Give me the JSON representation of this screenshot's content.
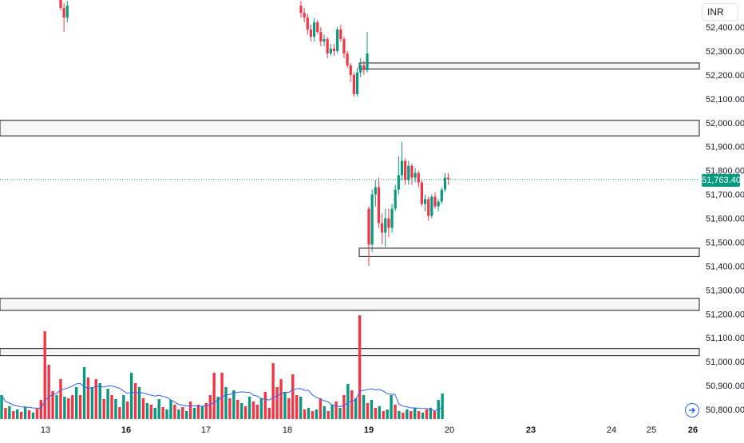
{
  "chart_data": {
    "type": "candlestick",
    "currency": "INR",
    "last_price": "51,763.40",
    "colors": {
      "up": "#089981",
      "down": "#f23645",
      "ma": "#2962ff",
      "last": "#089981",
      "zone": "#131722"
    },
    "y_axis": {
      "range": [
        50760,
        52460
      ],
      "ticks": [
        "52,400.00",
        "52,300.00",
        "52,200.00",
        "52,100.00",
        "52,000.00",
        "51,900.00",
        "51,800.00",
        "51,700.00",
        "51,600.00",
        "51,500.00",
        "51,400.00",
        "51,300.00",
        "51,200.00",
        "51,100.00",
        "51,000.00",
        "50,900.00",
        "50,800.00"
      ],
      "tick_values": [
        52400,
        52300,
        52200,
        52100,
        52000,
        51900,
        51800,
        51700,
        51600,
        51500,
        51400,
        51300,
        51200,
        51100,
        51000,
        50900,
        50800
      ]
    },
    "x_axis": {
      "labels": [
        "13",
        "16",
        "17",
        "18",
        "19",
        "20",
        "23",
        "24",
        "25",
        "26"
      ],
      "bold": [
        "16",
        "19",
        "23",
        "26"
      ]
    },
    "zones": [
      {
        "from": 52225,
        "to": 52250,
        "start_day": 19
      },
      {
        "from": 51945,
        "to": 52010
      },
      {
        "from": 51440,
        "to": 51475,
        "start_day": 19
      },
      {
        "from": 51215,
        "to": 51265
      },
      {
        "from": 51025,
        "to": 51055
      }
    ],
    "candle_groups": [
      {
        "day": 13,
        "candles": [
          {
            "o": 52530,
            "h": 52560,
            "l": 52470,
            "c": 52480
          },
          {
            "o": 52480,
            "h": 52500,
            "l": 52380,
            "c": 52440
          },
          {
            "o": 52440,
            "h": 52510,
            "l": 52420,
            "c": 52490
          }
        ]
      },
      {
        "day": 18,
        "candles": [
          {
            "o": 52490,
            "h": 52510,
            "l": 52440,
            "c": 52460
          },
          {
            "o": 52460,
            "h": 52480,
            "l": 52420,
            "c": 52440
          },
          {
            "o": 52440,
            "h": 52455,
            "l": 52370,
            "c": 52390
          },
          {
            "o": 52390,
            "h": 52410,
            "l": 52340,
            "c": 52360
          },
          {
            "o": 52360,
            "h": 52440,
            "l": 52340,
            "c": 52420
          },
          {
            "o": 52420,
            "h": 52430,
            "l": 52370,
            "c": 52380
          },
          {
            "o": 52380,
            "h": 52400,
            "l": 52320,
            "c": 52340
          },
          {
            "o": 52340,
            "h": 52370,
            "l": 52320,
            "c": 52350
          },
          {
            "o": 52350,
            "h": 52360,
            "l": 52270,
            "c": 52290
          },
          {
            "o": 52290,
            "h": 52330,
            "l": 52280,
            "c": 52310
          },
          {
            "o": 52310,
            "h": 52330,
            "l": 52280,
            "c": 52300
          },
          {
            "o": 52300,
            "h": 52400,
            "l": 52290,
            "c": 52390
          },
          {
            "o": 52390,
            "h": 52410,
            "l": 52340,
            "c": 52350
          },
          {
            "o": 52350,
            "h": 52360,
            "l": 52270,
            "c": 52290
          },
          {
            "o": 52290,
            "h": 52300,
            "l": 52230,
            "c": 52240
          },
          {
            "o": 52240,
            "h": 52250,
            "l": 52170,
            "c": 52200
          },
          {
            "o": 52200,
            "h": 52210,
            "l": 52110,
            "c": 52120
          },
          {
            "o": 52120,
            "h": 52230,
            "l": 52110,
            "c": 52210
          },
          {
            "o": 52210,
            "h": 52270,
            "l": 52190,
            "c": 52240
          },
          {
            "o": 52240,
            "h": 52260,
            "l": 52200,
            "c": 52220
          },
          {
            "o": 52220,
            "h": 52380,
            "l": 52210,
            "c": 52290
          }
        ]
      },
      {
        "day": 19,
        "candles": [
          {
            "o": 51640,
            "h": 51650,
            "l": 51400,
            "c": 51490
          },
          {
            "o": 51490,
            "h": 51720,
            "l": 51460,
            "c": 51700
          },
          {
            "o": 51700,
            "h": 51760,
            "l": 51650,
            "c": 51730
          },
          {
            "o": 51730,
            "h": 51770,
            "l": 51560,
            "c": 51580
          },
          {
            "o": 51580,
            "h": 51620,
            "l": 51490,
            "c": 51540
          },
          {
            "o": 51540,
            "h": 51640,
            "l": 51480,
            "c": 51600
          },
          {
            "o": 51600,
            "h": 51640,
            "l": 51520,
            "c": 51560
          },
          {
            "o": 51560,
            "h": 51660,
            "l": 51540,
            "c": 51640
          },
          {
            "o": 51640,
            "h": 51740,
            "l": 51630,
            "c": 51720
          },
          {
            "o": 51720,
            "h": 51860,
            "l": 51700,
            "c": 51780
          },
          {
            "o": 51780,
            "h": 51920,
            "l": 51760,
            "c": 51840
          },
          {
            "o": 51840,
            "h": 51850,
            "l": 51740,
            "c": 51760
          },
          {
            "o": 51760,
            "h": 51840,
            "l": 51740,
            "c": 51820
          },
          {
            "o": 51820,
            "h": 51830,
            "l": 51740,
            "c": 51770
          },
          {
            "o": 51770,
            "h": 51810,
            "l": 51750,
            "c": 51790
          },
          {
            "o": 51790,
            "h": 51800,
            "l": 51730,
            "c": 51750
          },
          {
            "o": 51750,
            "h": 51760,
            "l": 51650,
            "c": 51660
          },
          {
            "o": 51660,
            "h": 51700,
            "l": 51630,
            "c": 51680
          },
          {
            "o": 51680,
            "h": 51690,
            "l": 51590,
            "c": 51610
          },
          {
            "o": 51610,
            "h": 51700,
            "l": 51600,
            "c": 51690
          },
          {
            "o": 51690,
            "h": 51710,
            "l": 51640,
            "c": 51650
          },
          {
            "o": 51650,
            "h": 51680,
            "l": 51630,
            "c": 51670
          },
          {
            "o": 51670,
            "h": 51730,
            "l": 51660,
            "c": 51720
          },
          {
            "o": 51720,
            "h": 51790,
            "l": 51710,
            "c": 51770
          },
          {
            "o": 51770,
            "h": 51790,
            "l": 51740,
            "c": 51763.4
          }
        ]
      }
    ],
    "volume_bars": [
      {
        "v": 30,
        "up": true
      },
      {
        "v": 14,
        "up": false
      },
      {
        "v": 16,
        "up": true
      },
      {
        "v": 10,
        "up": false
      },
      {
        "v": 12,
        "up": true
      },
      {
        "v": 9,
        "up": false
      },
      {
        "v": 15,
        "up": true
      },
      {
        "v": 11,
        "up": false
      },
      {
        "v": 8,
        "up": true
      },
      {
        "v": 13,
        "up": false
      },
      {
        "v": 24,
        "up": false
      },
      {
        "v": 110,
        "up": false
      },
      {
        "v": 68,
        "up": false
      },
      {
        "v": 35,
        "up": false
      },
      {
        "v": 30,
        "up": true
      },
      {
        "v": 50,
        "up": false
      },
      {
        "v": 28,
        "up": true
      },
      {
        "v": 26,
        "up": false
      },
      {
        "v": 30,
        "up": false
      },
      {
        "v": 40,
        "up": true
      },
      {
        "v": 30,
        "up": false
      },
      {
        "v": 65,
        "up": true
      },
      {
        "v": 52,
        "up": false
      },
      {
        "v": 40,
        "up": true
      },
      {
        "v": 50,
        "up": false
      },
      {
        "v": 45,
        "up": true
      },
      {
        "v": 25,
        "up": false
      },
      {
        "v": 38,
        "up": true
      },
      {
        "v": 30,
        "up": false
      },
      {
        "v": 25,
        "up": true
      },
      {
        "v": 15,
        "up": false
      },
      {
        "v": 30,
        "up": true
      },
      {
        "v": 22,
        "up": false
      },
      {
        "v": 58,
        "up": true
      },
      {
        "v": 45,
        "up": false
      },
      {
        "v": 40,
        "up": true
      },
      {
        "v": 26,
        "up": false
      },
      {
        "v": 20,
        "up": true
      },
      {
        "v": 18,
        "up": false
      },
      {
        "v": 14,
        "up": true
      },
      {
        "v": 25,
        "up": true
      },
      {
        "v": 15,
        "up": false
      },
      {
        "v": 12,
        "up": true
      },
      {
        "v": 24,
        "up": true
      },
      {
        "v": 18,
        "up": false
      },
      {
        "v": 12,
        "up": true
      },
      {
        "v": 15,
        "up": false
      },
      {
        "v": 10,
        "up": true
      },
      {
        "v": 22,
        "up": false
      },
      {
        "v": 14,
        "up": true
      },
      {
        "v": 18,
        "up": false
      },
      {
        "v": 16,
        "up": true
      },
      {
        "v": 20,
        "up": false
      },
      {
        "v": 30,
        "up": false
      },
      {
        "v": 58,
        "up": false
      },
      {
        "v": 28,
        "up": true
      },
      {
        "v": 58,
        "up": false
      },
      {
        "v": 40,
        "up": true
      },
      {
        "v": 26,
        "up": false
      },
      {
        "v": 36,
        "up": true
      },
      {
        "v": 24,
        "up": false
      },
      {
        "v": 20,
        "up": true
      },
      {
        "v": 16,
        "up": false
      },
      {
        "v": 28,
        "up": true
      },
      {
        "v": 22,
        "up": false
      },
      {
        "v": 18,
        "up": false
      },
      {
        "v": 26,
        "up": true
      },
      {
        "v": 34,
        "up": false
      },
      {
        "v": 14,
        "up": false
      },
      {
        "v": 70,
        "up": false
      },
      {
        "v": 40,
        "up": false
      },
      {
        "v": 50,
        "up": false
      },
      {
        "v": 34,
        "up": true
      },
      {
        "v": 26,
        "up": false
      },
      {
        "v": 56,
        "up": false
      },
      {
        "v": 30,
        "up": false
      },
      {
        "v": 28,
        "up": true
      },
      {
        "v": 12,
        "up": false
      },
      {
        "v": 14,
        "up": true
      },
      {
        "v": 10,
        "up": false
      },
      {
        "v": 12,
        "up": true
      },
      {
        "v": 26,
        "up": false
      },
      {
        "v": 16,
        "up": true
      },
      {
        "v": 10,
        "up": false
      },
      {
        "v": 18,
        "up": true
      },
      {
        "v": 22,
        "up": false
      },
      {
        "v": 14,
        "up": true
      },
      {
        "v": 30,
        "up": false
      },
      {
        "v": 44,
        "up": true
      },
      {
        "v": 36,
        "up": false
      },
      {
        "v": 26,
        "up": true
      },
      {
        "v": 130,
        "up": false
      },
      {
        "v": 30,
        "up": true
      },
      {
        "v": 20,
        "up": false
      },
      {
        "v": 24,
        "up": true
      },
      {
        "v": 14,
        "up": false
      },
      {
        "v": 16,
        "up": true
      },
      {
        "v": 10,
        "up": false
      },
      {
        "v": 12,
        "up": true
      },
      {
        "v": 30,
        "up": true
      },
      {
        "v": 18,
        "up": false
      },
      {
        "v": 10,
        "up": true
      },
      {
        "v": 8,
        "up": false
      },
      {
        "v": 12,
        "up": true
      },
      {
        "v": 10,
        "up": false
      },
      {
        "v": 14,
        "up": true
      },
      {
        "v": 10,
        "up": false
      },
      {
        "v": 8,
        "up": true
      },
      {
        "v": 12,
        "up": false
      },
      {
        "v": 14,
        "up": true
      },
      {
        "v": 10,
        "up": false
      },
      {
        "v": 24,
        "up": true
      },
      {
        "v": 32,
        "up": true
      }
    ]
  }
}
